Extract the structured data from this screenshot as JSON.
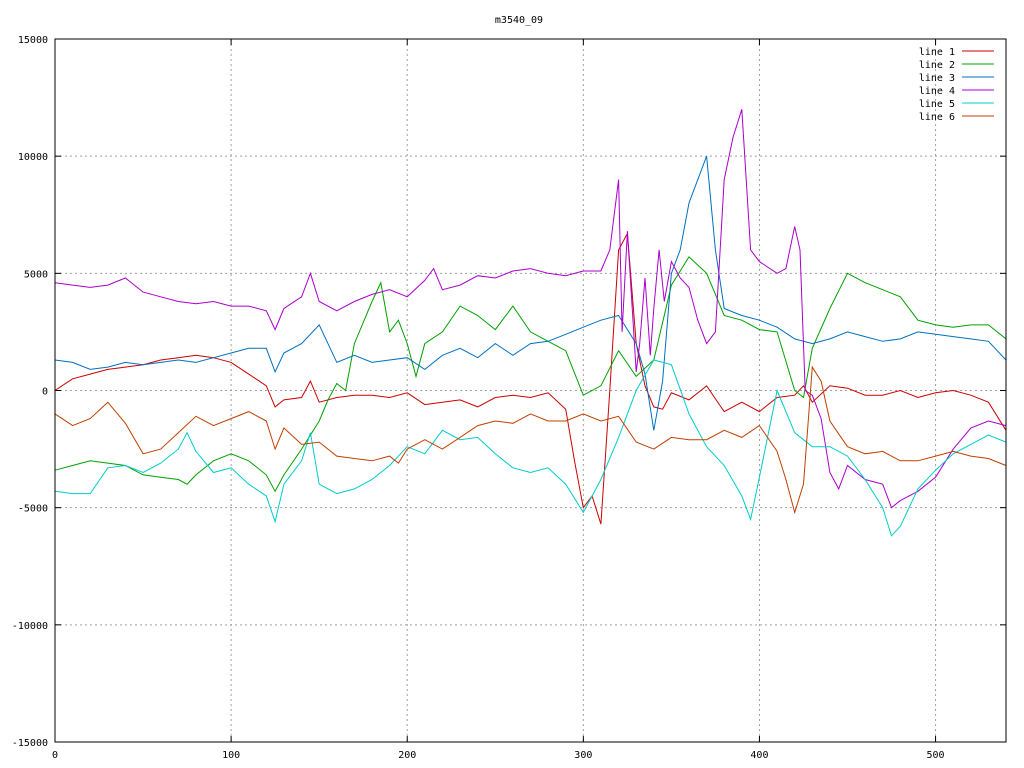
{
  "chart_data": {
    "type": "line",
    "title": "m3540_09",
    "xlabel": "",
    "ylabel": "",
    "xlim": [
      0,
      540
    ],
    "ylim": [
      -15000,
      15000
    ],
    "x_ticks": [
      0,
      100,
      200,
      300,
      400,
      500
    ],
    "y_ticks": [
      -15000,
      -10000,
      -5000,
      0,
      5000,
      10000,
      15000
    ],
    "grid": true,
    "legend_position": "top-right",
    "series": [
      {
        "name": "line 1",
        "color": "#cc0000",
        "x": [
          0,
          10,
          20,
          30,
          40,
          50,
          60,
          70,
          80,
          90,
          100,
          110,
          120,
          125,
          130,
          140,
          145,
          150,
          160,
          170,
          180,
          190,
          200,
          210,
          220,
          230,
          240,
          250,
          260,
          270,
          280,
          290,
          295,
          300,
          305,
          310,
          315,
          320,
          325,
          330,
          335,
          340,
          345,
          350,
          360,
          370,
          380,
          390,
          400,
          410,
          420,
          425,
          430,
          440,
          450,
          460,
          470,
          480,
          490,
          500,
          510,
          520,
          530,
          540
        ],
        "y": [
          0,
          500,
          700,
          900,
          1000,
          1100,
          1300,
          1400,
          1500,
          1400,
          1200,
          700,
          200,
          -700,
          -400,
          -300,
          400,
          -500,
          -300,
          -200,
          -200,
          -300,
          -100,
          -600,
          -500,
          -400,
          -700,
          -300,
          -200,
          -300,
          -100,
          -800,
          -3000,
          -5000,
          -4500,
          -5700,
          0,
          6000,
          6700,
          2000,
          200,
          -700,
          -800,
          -100,
          -400,
          200,
          -900,
          -500,
          -900,
          -300,
          -200,
          200,
          -500,
          200,
          100,
          -200,
          -200,
          0,
          -300,
          -100,
          0,
          -200,
          -500,
          -1700
        ]
      },
      {
        "name": "line 2",
        "color": "#00a000",
        "x": [
          0,
          10,
          20,
          30,
          40,
          50,
          60,
          70,
          75,
          80,
          90,
          100,
          110,
          120,
          125,
          130,
          140,
          150,
          155,
          160,
          165,
          170,
          180,
          185,
          190,
          195,
          200,
          205,
          210,
          220,
          230,
          240,
          250,
          260,
          270,
          280,
          290,
          300,
          310,
          320,
          330,
          340,
          350,
          360,
          370,
          380,
          390,
          400,
          410,
          420,
          425,
          430,
          440,
          450,
          460,
          470,
          480,
          490,
          500,
          510,
          520,
          530,
          540
        ],
        "y": [
          -3400,
          -3200,
          -3000,
          -3100,
          -3200,
          -3600,
          -3700,
          -3800,
          -4000,
          -3600,
          -3000,
          -2700,
          -3000,
          -3600,
          -4300,
          -3600,
          -2500,
          -1300,
          -400,
          300,
          0,
          2000,
          3800,
          4600,
          2500,
          3000,
          2000,
          600,
          2000,
          2500,
          3600,
          3200,
          2600,
          3600,
          2500,
          2100,
          1700,
          -200,
          200,
          1700,
          600,
          1300,
          4500,
          5700,
          5000,
          3200,
          3000,
          2600,
          2500,
          0,
          -300,
          1800,
          3500,
          5000,
          4600,
          4300,
          4000,
          3000,
          2800,
          2700,
          2800,
          2800,
          2200
        ]
      },
      {
        "name": "line 3",
        "color": "#0070c0",
        "x": [
          0,
          10,
          20,
          30,
          40,
          50,
          60,
          70,
          80,
          90,
          100,
          110,
          120,
          125,
          130,
          140,
          150,
          160,
          170,
          180,
          190,
          200,
          210,
          220,
          230,
          240,
          250,
          260,
          270,
          280,
          290,
          300,
          310,
          320,
          330,
          335,
          340,
          345,
          350,
          355,
          360,
          365,
          370,
          375,
          380,
          390,
          400,
          410,
          420,
          430,
          440,
          450,
          460,
          470,
          480,
          490,
          500,
          510,
          520,
          530,
          540
        ],
        "y": [
          1300,
          1200,
          900,
          1000,
          1200,
          1100,
          1200,
          1300,
          1200,
          1400,
          1600,
          1800,
          1800,
          800,
          1600,
          2000,
          2800,
          1200,
          1500,
          1200,
          1300,
          1400,
          900,
          1500,
          1800,
          1400,
          2000,
          1500,
          2000,
          2100,
          2400,
          2700,
          3000,
          3200,
          2000,
          700,
          -1700,
          400,
          5000,
          6000,
          8000,
          9000,
          10000,
          6000,
          3500,
          3200,
          3000,
          2700,
          2200,
          2000,
          2200,
          2500,
          2300,
          2100,
          2200,
          2500,
          2400,
          2300,
          2200,
          2100,
          1300
        ]
      },
      {
        "name": "line 4",
        "color": "#aa00cc",
        "x": [
          0,
          10,
          20,
          30,
          40,
          50,
          60,
          70,
          80,
          90,
          100,
          110,
          120,
          125,
          130,
          140,
          145,
          150,
          160,
          170,
          180,
          190,
          200,
          210,
          215,
          220,
          230,
          240,
          250,
          260,
          270,
          280,
          290,
          300,
          310,
          315,
          320,
          322,
          325,
          330,
          332,
          335,
          338,
          340,
          343,
          346,
          350,
          355,
          360,
          365,
          370,
          375,
          380,
          385,
          390,
          395,
          400,
          410,
          415,
          420,
          423,
          426,
          430,
          435,
          440,
          445,
          450,
          460,
          470,
          475,
          480,
          490,
          500,
          510,
          520,
          530,
          540
        ],
        "y": [
          4600,
          4500,
          4400,
          4500,
          4800,
          4200,
          4000,
          3800,
          3700,
          3800,
          3600,
          3600,
          3400,
          2600,
          3500,
          4000,
          5000,
          3800,
          3400,
          3800,
          4100,
          4300,
          4000,
          4700,
          5200,
          4300,
          4500,
          4900,
          4800,
          5100,
          5200,
          5000,
          4900,
          5100,
          5100,
          6000,
          9000,
          2500,
          6800,
          800,
          2000,
          4800,
          1500,
          3500,
          6000,
          3800,
          5500,
          4800,
          4400,
          3000,
          2000,
          2500,
          9000,
          10800,
          12000,
          6000,
          5500,
          5000,
          5200,
          7000,
          6000,
          0,
          -200,
          -1200,
          -3500,
          -4200,
          -3200,
          -3800,
          -4000,
          -5000,
          -4700,
          -4300,
          -3700,
          -2500,
          -1600,
          -1300,
          -1500
        ]
      },
      {
        "name": "line 5",
        "color": "#00cccc",
        "x": [
          0,
          10,
          20,
          30,
          40,
          50,
          60,
          70,
          75,
          80,
          90,
          100,
          110,
          120,
          125,
          130,
          140,
          145,
          150,
          160,
          170,
          180,
          190,
          200,
          210,
          220,
          230,
          240,
          250,
          260,
          270,
          280,
          290,
          300,
          305,
          310,
          320,
          330,
          340,
          350,
          360,
          370,
          380,
          390,
          395,
          400,
          410,
          420,
          430,
          440,
          450,
          460,
          470,
          475,
          480,
          490,
          500,
          510,
          520,
          530,
          540
        ],
        "y": [
          -4300,
          -4400,
          -4400,
          -3300,
          -3200,
          -3500,
          -3100,
          -2500,
          -1800,
          -2600,
          -3500,
          -3300,
          -4000,
          -4500,
          -5600,
          -4000,
          -3000,
          -1800,
          -4000,
          -4400,
          -4200,
          -3800,
          -3200,
          -2400,
          -2700,
          -1700,
          -2100,
          -2000,
          -2700,
          -3300,
          -3500,
          -3300,
          -4000,
          -5200,
          -4500,
          -3800,
          -2000,
          0,
          1300,
          1100,
          -1000,
          -2400,
          -3200,
          -4500,
          -5500,
          -3700,
          0,
          -1800,
          -2400,
          -2400,
          -2800,
          -3800,
          -5000,
          -6200,
          -5800,
          -4200,
          -3400,
          -2700,
          -2300,
          -1900,
          -2200
        ]
      },
      {
        "name": "line 6",
        "color": "#c04000",
        "x": [
          0,
          10,
          20,
          30,
          40,
          50,
          60,
          70,
          80,
          90,
          100,
          110,
          120,
          125,
          130,
          140,
          150,
          160,
          170,
          180,
          190,
          195,
          200,
          210,
          220,
          230,
          240,
          250,
          260,
          270,
          280,
          290,
          300,
          310,
          320,
          330,
          340,
          350,
          360,
          370,
          380,
          390,
          400,
          410,
          415,
          420,
          425,
          430,
          435,
          440,
          450,
          460,
          470,
          480,
          490,
          500,
          510,
          520,
          530,
          540
        ],
        "y": [
          -1000,
          -1500,
          -1200,
          -500,
          -1400,
          -2700,
          -2500,
          -1800,
          -1100,
          -1500,
          -1200,
          -900,
          -1300,
          -2500,
          -1600,
          -2300,
          -2200,
          -2800,
          -2900,
          -3000,
          -2800,
          -3100,
          -2500,
          -2100,
          -2500,
          -2000,
          -1500,
          -1300,
          -1400,
          -1000,
          -1300,
          -1300,
          -1000,
          -1300,
          -1100,
          -2200,
          -2500,
          -2000,
          -2100,
          -2100,
          -1700,
          -2000,
          -1500,
          -2600,
          -3800,
          -5200,
          -4000,
          1000,
          400,
          -1300,
          -2400,
          -2700,
          -2600,
          -3000,
          -3000,
          -2800,
          -2600,
          -2800,
          -2900,
          -3200
        ]
      }
    ]
  }
}
